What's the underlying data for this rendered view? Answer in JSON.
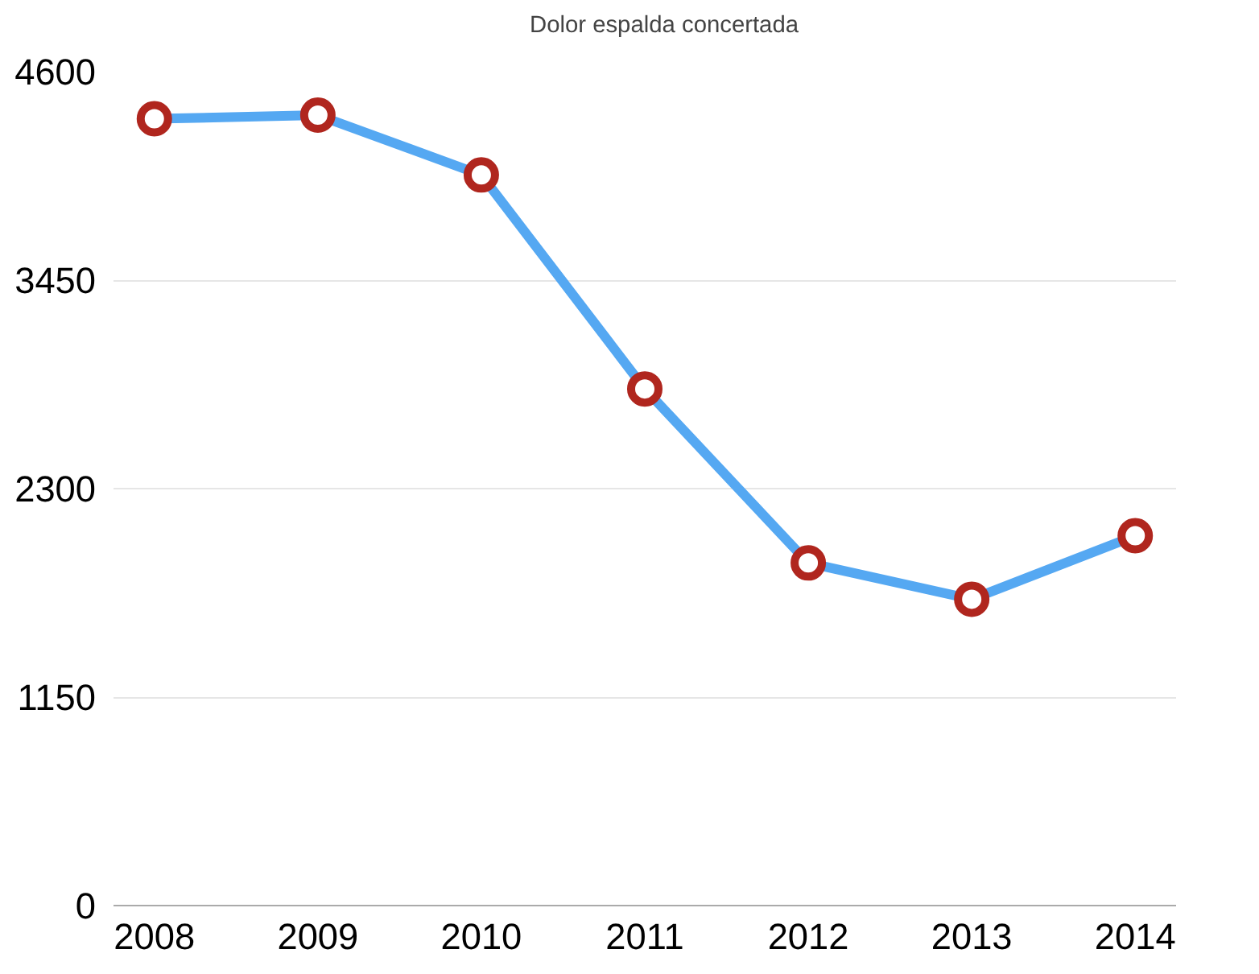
{
  "chart_data": {
    "type": "line",
    "categories": [
      "2008",
      "2009",
      "2010",
      "2011",
      "2012",
      "2013",
      "2014"
    ],
    "series": [
      {
        "name": "Dolor espalda concertada",
        "color": "#55a8f2",
        "colors": [
          "#b0261e",
          "#b0261e",
          "#b0261e",
          "#b0261e",
          "#b0261e",
          "#b0261e",
          "#b0261e"
        ],
        "values": [
          4340,
          4360,
          4030,
          2850,
          1890,
          1690,
          2040
        ]
      }
    ],
    "ylim": [
      0,
      4600
    ],
    "yticks": [
      0,
      1150,
      2300,
      3450,
      4600
    ],
    "grid": "y",
    "legend": "top",
    "marker": "circle",
    "line_style": "solid"
  }
}
